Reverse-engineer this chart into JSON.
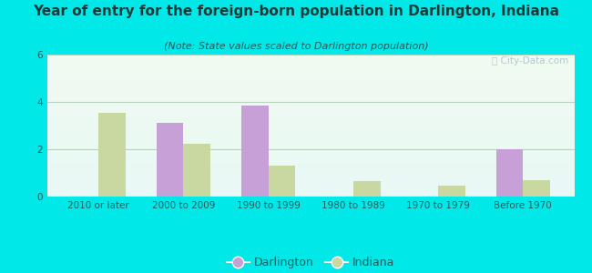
{
  "title": "Year of entry for the foreign-born population in Darlington, Indiana",
  "subtitle": "(Note: State values scaled to Darlington population)",
  "categories": [
    "2010 or later",
    "2000 to 2009",
    "1990 to 1999",
    "1980 to 1989",
    "1970 to 1979",
    "Before 1970"
  ],
  "darlington": [
    0,
    3.1,
    3.85,
    0,
    0,
    2.0
  ],
  "indiana": [
    3.55,
    2.25,
    1.3,
    0.65,
    0.45,
    0.7
  ],
  "darlington_color": "#c8a0d8",
  "indiana_color": "#c8d8a0",
  "background_color": "#00e8e8",
  "ylim": [
    0,
    6
  ],
  "yticks": [
    0,
    2,
    4,
    6
  ],
  "bar_width": 0.32,
  "title_fontsize": 11,
  "subtitle_fontsize": 8,
  "tick_fontsize": 7.5,
  "legend_fontsize": 9,
  "watermark_text": "ⓘ City-Data.com",
  "watermark_color": "#a8bfcc",
  "grid_color": "#b8d4c0",
  "title_color": "#1a3a3a",
  "subtitle_color": "#2a5a5a",
  "tick_color": "#2a5a5a"
}
